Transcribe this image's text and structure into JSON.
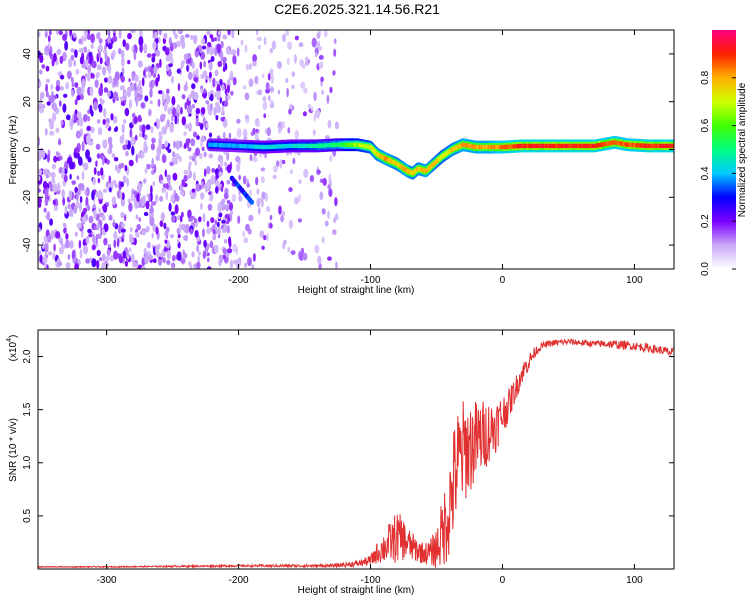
{
  "figure": {
    "title": "C2E6.2025.321.14.56.R21"
  },
  "chart_data": [
    {
      "type": "heatmap",
      "name": "spectrogram",
      "xlabel": "Height of straight line (km)",
      "ylabel": "Frequency (Hz)",
      "xlim": [
        -352,
        130
      ],
      "ylim": [
        -50,
        50
      ],
      "xticks": [
        -300,
        -200,
        -100,
        0,
        100
      ],
      "yticks": [
        -40,
        -20,
        0,
        20,
        40
      ],
      "colorbar": {
        "label": "Normalized spectral amplitude",
        "range": [
          0,
          1
        ],
        "ticks": [
          0.0,
          0.2,
          0.4,
          0.6,
          0.8
        ],
        "stops": [
          {
            "v": 0.0,
            "color": "#ffffff"
          },
          {
            "v": 0.1,
            "color": "#c8a8f8"
          },
          {
            "v": 0.2,
            "color": "#7a00ff"
          },
          {
            "v": 0.3,
            "color": "#0000ff"
          },
          {
            "v": 0.4,
            "color": "#00c8ff"
          },
          {
            "v": 0.5,
            "color": "#00ff80"
          },
          {
            "v": 0.6,
            "color": "#40ff00"
          },
          {
            "v": 0.7,
            "color": "#d0ff00"
          },
          {
            "v": 0.8,
            "color": "#ffb000"
          },
          {
            "v": 0.9,
            "color": "#ff2000"
          },
          {
            "v": 1.0,
            "color": "#ff0080"
          }
        ]
      },
      "noise_regions": [
        {
          "x": [
            -352,
            -205
          ],
          "y": [
            -50,
            50
          ],
          "density": 1.0
        },
        {
          "x": [
            -205,
            -125
          ],
          "y": [
            -50,
            50
          ],
          "density": 0.35
        }
      ],
      "ridge": {
        "x": [
          -222,
          -200,
          -180,
          -160,
          -140,
          -125,
          -110,
          -100,
          -95,
          -88,
          -80,
          -72,
          -68,
          -64,
          -58,
          -52,
          -46,
          -38,
          -30,
          -20,
          -10,
          0,
          15,
          40,
          70,
          85,
          95,
          110,
          130
        ],
        "y": [
          2,
          1.5,
          1,
          1.5,
          1.5,
          2,
          2,
          1,
          -2,
          -4,
          -6,
          -9,
          -10,
          -8,
          -9,
          -6,
          -3,
          0,
          2,
          1,
          1,
          1,
          1.5,
          1.5,
          1.5,
          3,
          2,
          1.5,
          1.5
        ],
        "amp": [
          0.4,
          0.4,
          0.45,
          0.45,
          0.5,
          0.55,
          0.7,
          0.75,
          0.8,
          0.85,
          0.8,
          0.85,
          0.8,
          0.8,
          0.85,
          0.8,
          0.75,
          0.8,
          0.85,
          0.85,
          0.85,
          0.9,
          0.95,
          0.95,
          0.95,
          0.9,
          0.9,
          0.95,
          0.95
        ]
      },
      "side_streak": {
        "x": [
          -205,
          -190
        ],
        "y": [
          -12,
          -22
        ],
        "amp": 0.35
      }
    },
    {
      "type": "line",
      "name": "snr",
      "xlabel": "Height of straight line (km)",
      "ylabel": "SNR (10 * v/v)",
      "exponent_label": "(x10",
      "exponent_power": "4",
      "exponent_close": ")",
      "xlim": [
        -352,
        130
      ],
      "ylim": [
        0,
        2.25
      ],
      "xticks": [
        -300,
        -200,
        -100,
        0,
        100
      ],
      "yticks": [
        0.5,
        1.0,
        1.5,
        2.0
      ],
      "ytick_labels": [
        "0.5",
        "1.0",
        "1.5",
        "2.0"
      ],
      "color": "#e03030",
      "x": [
        -352,
        -300,
        -200,
        -130,
        -110,
        -100,
        -95,
        -90,
        -85,
        -80,
        -75,
        -70,
        -65,
        -60,
        -55,
        -50,
        -45,
        -40,
        -35,
        -30,
        -25,
        -20,
        -15,
        -10,
        -5,
        0,
        5,
        10,
        15,
        20,
        25,
        30,
        35,
        40,
        50,
        60,
        70,
        80,
        90,
        100,
        110,
        120,
        130
      ],
      "y": [
        0.02,
        0.02,
        0.03,
        0.03,
        0.05,
        0.08,
        0.15,
        0.2,
        0.25,
        0.3,
        0.28,
        0.22,
        0.18,
        0.15,
        0.15,
        0.2,
        0.35,
        0.6,
        0.95,
        1.1,
        1.15,
        1.2,
        1.25,
        1.3,
        1.35,
        1.45,
        1.55,
        1.7,
        1.85,
        1.95,
        2.05,
        2.1,
        2.12,
        2.13,
        2.14,
        2.13,
        2.12,
        2.12,
        2.11,
        2.1,
        2.08,
        2.06,
        2.03
      ],
      "noise": [
        0.005,
        0.005,
        0.01,
        0.015,
        0.03,
        0.05,
        0.1,
        0.15,
        0.2,
        0.25,
        0.2,
        0.15,
        0.12,
        0.1,
        0.12,
        0.2,
        0.35,
        0.5,
        0.55,
        0.5,
        0.45,
        0.4,
        0.35,
        0.3,
        0.25,
        0.2,
        0.15,
        0.12,
        0.1,
        0.08,
        0.05,
        0.03,
        0.03,
        0.03,
        0.03,
        0.03,
        0.03,
        0.04,
        0.04,
        0.04,
        0.04,
        0.04,
        0.05
      ]
    }
  ]
}
